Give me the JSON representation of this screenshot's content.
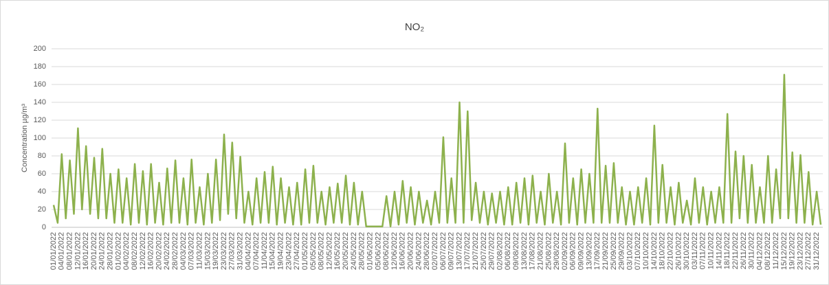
{
  "chart_data": {
    "type": "line",
    "title": "NO₂",
    "y_label": "Concentration µg/m³",
    "color": "#8db14d",
    "ylim": [
      0,
      200
    ],
    "yticks": [
      0,
      20,
      40,
      60,
      80,
      100,
      120,
      140,
      160,
      180,
      200
    ],
    "grid": true,
    "categories": [
      "01/01/2022",
      null,
      "04/01/2022",
      null,
      "08/01/2022",
      null,
      "12/01/2022",
      null,
      "16/01/2022",
      null,
      "20/01/2022",
      null,
      "24/01/2022",
      null,
      "28/01/2022",
      null,
      "01/02/2022",
      null,
      "04/02/2022",
      null,
      "08/02/2022",
      null,
      "12/02/2022",
      null,
      "16/02/2022",
      null,
      "20/02/2022",
      null,
      "24/02/2022",
      null,
      "28/02/2022",
      null,
      "04/03/2022",
      null,
      "07/03/2022",
      null,
      "11/03/2022",
      null,
      "15/03/2022",
      null,
      "19/03/2022",
      null,
      "23/03/2022",
      null,
      "27/03/2022",
      null,
      "31/03/2022",
      null,
      "04/04/2022",
      null,
      "07/04/2022",
      null,
      "11/04/2022",
      null,
      "15/04/2022",
      null,
      "19/04/2022",
      null,
      "23/04/2022",
      null,
      "27/04/2022",
      null,
      "01/05/2022",
      null,
      "05/05/2022",
      null,
      "08/05/2022",
      null,
      "12/05/2022",
      null,
      "16/05/2022",
      null,
      "20/05/2022",
      null,
      "24/05/2022",
      null,
      "28/05/2022",
      null,
      "01/06/2022",
      null,
      "05/06/2022",
      null,
      "08/06/2022",
      null,
      "12/06/2022",
      null,
      "16/06/2022",
      null,
      "20/06/2022",
      null,
      "24/06/2022",
      null,
      "28/06/2022",
      null,
      "02/07/2022",
      null,
      "06/07/2022",
      null,
      "09/07/2022",
      null,
      "13/07/2022",
      null,
      "17/07/2022",
      null,
      "21/07/2022",
      null,
      "25/07/2022",
      null,
      "29/07/2022",
      null,
      "02/08/2022",
      null,
      "06/08/2022",
      null,
      "09/08/2022",
      null,
      "13/08/2022",
      null,
      "17/08/2022",
      null,
      "21/08/2022",
      null,
      "25/08/2022",
      null,
      "29/08/2022",
      null,
      "02/09/2022",
      null,
      "06/09/2022",
      null,
      "09/09/2022",
      null,
      "13/09/2022",
      null,
      "17/09/2022",
      null,
      "21/09/2022",
      null,
      "25/09/2022",
      null,
      "29/09/2022",
      null,
      "03/10/2022",
      null,
      "07/10/2022",
      null,
      "10/10/2022",
      null,
      "14/10/2022",
      null,
      "18/10/2022",
      null,
      "22/10/2022",
      null,
      "26/10/2022",
      null,
      "30/10/2022",
      null,
      "03/11/2022",
      null,
      "07/11/2022",
      null,
      "10/11/2022",
      null,
      "14/11/2022",
      null,
      "18/11/2022",
      null,
      "22/11/2022",
      null,
      "26/11/2022",
      null,
      "30/11/2022",
      null,
      "04/12/2022",
      null,
      "08/12/2022",
      null,
      "11/12/2022",
      null,
      "15/12/2022",
      null,
      "19/12/2022",
      null,
      "23/12/2022",
      null,
      "27/12/2022",
      null,
      "31/12/2022",
      null
    ],
    "values": [
      25,
      5,
      82,
      10,
      75,
      15,
      111,
      20,
      91,
      15,
      78,
      10,
      88,
      10,
      60,
      5,
      65,
      5,
      55,
      3,
      71,
      5,
      63,
      3,
      71,
      5,
      50,
      3,
      66,
      5,
      75,
      5,
      55,
      3,
      76,
      5,
      45,
      3,
      60,
      5,
      76,
      8,
      104,
      15,
      95,
      10,
      79,
      5,
      40,
      3,
      55,
      5,
      62,
      5,
      68,
      3,
      55,
      5,
      45,
      3,
      50,
      3,
      65,
      5,
      69,
      5,
      40,
      3,
      45,
      5,
      49,
      5,
      58,
      3,
      50,
      3,
      40,
      1,
      1,
      1,
      1,
      1,
      35,
      1,
      40,
      3,
      52,
      5,
      45,
      3,
      40,
      5,
      30,
      3,
      40,
      5,
      101,
      5,
      55,
      5,
      140,
      5,
      130,
      8,
      50,
      5,
      40,
      3,
      38,
      5,
      40,
      3,
      45,
      3,
      50,
      5,
      55,
      3,
      58,
      5,
      40,
      3,
      60,
      5,
      40,
      3,
      94,
      5,
      55,
      3,
      65,
      5,
      60,
      5,
      133,
      5,
      69,
      5,
      72,
      5,
      45,
      3,
      40,
      3,
      45,
      5,
      55,
      3,
      114,
      5,
      70,
      5,
      45,
      3,
      50,
      5,
      30,
      3,
      55,
      5,
      45,
      3,
      40,
      5,
      45,
      5,
      127,
      5,
      85,
      10,
      80,
      5,
      70,
      5,
      45,
      5,
      80,
      5,
      65,
      10,
      171,
      10,
      84,
      5,
      81,
      5,
      62,
      3,
      40,
      3
    ]
  }
}
